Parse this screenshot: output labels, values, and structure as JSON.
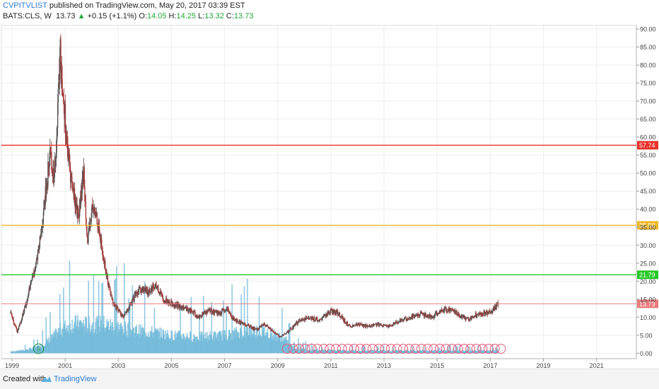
{
  "header": {
    "author": "CVPITVLIST",
    "published": "published on TradingView.com, May 20, 2017 03:39 EST",
    "symbol": "BATS:CLS, W",
    "last": "13.73",
    "change": "+0.15 (+1.1%)",
    "o_label": "O:",
    "o_value": "14.05",
    "h_label": "H:",
    "h_value": "14.25",
    "l_label": "L:",
    "l_value": "13.32",
    "c_label": "C:",
    "c_value": "13.73"
  },
  "footer": {
    "created_with": "Created with",
    "brand": "TradingView"
  },
  "colors": {
    "red_line": "#e8312a",
    "orange_line": "#f0b92a",
    "green_line": "#28c828",
    "current_line": "#e87a7a",
    "volume": "#6fb8d8",
    "candle_up": "#555555",
    "candle_down": "#a53b3b",
    "grid": "#eeeeee",
    "marker_red": "#e55a7a",
    "marker_green": "#1a8a3a"
  },
  "chart_data": {
    "type": "candlestick",
    "symbol": "BATS:CLS",
    "interval": "W",
    "xlim": [
      1998.6,
      2022.5
    ],
    "ylim": [
      -1.5,
      91
    ],
    "x_ticks": [
      "1999",
      "2001",
      "2003",
      "2005",
      "2007",
      "2009",
      "2011",
      "2013",
      "2015",
      "2017",
      "2019",
      "2021"
    ],
    "y_ticks": [
      "0.00",
      "5.00",
      "10.00",
      "15.00",
      "20.00",
      "25.00",
      "30.00",
      "35.00",
      "40.00",
      "45.00",
      "50.00",
      "55.00",
      "60.00",
      "65.00",
      "70.00",
      "75.00",
      "80.00",
      "85.00",
      "90.00"
    ],
    "horizontal_lines": [
      {
        "label": "57.74",
        "value": 57.74,
        "color": "#e8312a"
      },
      {
        "label": "35.50",
        "value": 35.5,
        "color": "#f0b92a"
      },
      {
        "label": "21.79",
        "value": 21.79,
        "color": "#28c828"
      },
      {
        "label": "13.73",
        "value": 13.73,
        "color": "#e87a7a"
      }
    ],
    "price_path": [
      [
        1998.95,
        11
      ],
      [
        1999.2,
        6
      ],
      [
        1999.5,
        13
      ],
      [
        1999.8,
        22
      ],
      [
        2000.0,
        28
      ],
      [
        2000.2,
        40
      ],
      [
        2000.45,
        57
      ],
      [
        2000.55,
        48
      ],
      [
        2000.7,
        62
      ],
      [
        2000.8,
        84
      ],
      [
        2000.95,
        70
      ],
      [
        2001.1,
        55
      ],
      [
        2001.3,
        45
      ],
      [
        2001.5,
        38
      ],
      [
        2001.7,
        50
      ],
      [
        2001.85,
        30
      ],
      [
        2002.0,
        40
      ],
      [
        2002.2,
        38
      ],
      [
        2002.4,
        28
      ],
      [
        2002.6,
        20
      ],
      [
        2002.8,
        14
      ],
      [
        2003.0,
        12
      ],
      [
        2003.2,
        10
      ],
      [
        2003.5,
        14
      ],
      [
        2003.8,
        18
      ],
      [
        2004.1,
        17
      ],
      [
        2004.4,
        19
      ],
      [
        2004.7,
        15
      ],
      [
        2005.0,
        14
      ],
      [
        2005.3,
        13
      ],
      [
        2005.7,
        12
      ],
      [
        2006.0,
        10
      ],
      [
        2006.4,
        12
      ],
      [
        2006.8,
        11
      ],
      [
        2007.1,
        12
      ],
      [
        2007.4,
        9
      ],
      [
        2007.8,
        8
      ],
      [
        2008.2,
        6.5
      ],
      [
        2008.5,
        8
      ],
      [
        2008.9,
        5.5
      ],
      [
        2009.1,
        4.5
      ],
      [
        2009.4,
        6
      ],
      [
        2009.8,
        9
      ],
      [
        2010.2,
        10
      ],
      [
        2010.6,
        9
      ],
      [
        2011.0,
        12
      ],
      [
        2011.3,
        11
      ],
      [
        2011.7,
        7.5
      ],
      [
        2012.0,
        8
      ],
      [
        2012.4,
        7.5
      ],
      [
        2012.8,
        8
      ],
      [
        2013.2,
        7.5
      ],
      [
        2013.6,
        9
      ],
      [
        2014.0,
        10
      ],
      [
        2014.4,
        11
      ],
      [
        2014.8,
        10
      ],
      [
        2015.2,
        12
      ],
      [
        2015.6,
        12
      ],
      [
        2015.9,
        10
      ],
      [
        2016.2,
        9.5
      ],
      [
        2016.5,
        11
      ],
      [
        2016.8,
        11
      ],
      [
        2017.1,
        12
      ],
      [
        2017.3,
        13.73
      ]
    ],
    "volume_envelope": [
      [
        1998.95,
        0.5
      ],
      [
        1999.5,
        1
      ],
      [
        2000.0,
        2
      ],
      [
        2000.4,
        4
      ],
      [
        2000.8,
        7
      ],
      [
        2001.2,
        9
      ],
      [
        2001.6,
        9
      ],
      [
        2002.0,
        8.5
      ],
      [
        2002.4,
        9
      ],
      [
        2003.0,
        8
      ],
      [
        2003.6,
        7
      ],
      [
        2004.2,
        6.5
      ],
      [
        2005.0,
        5.5
      ],
      [
        2006.0,
        5
      ],
      [
        2007.0,
        5.5
      ],
      [
        2007.6,
        6.5
      ],
      [
        2008.2,
        7
      ],
      [
        2008.8,
        6
      ],
      [
        2009.3,
        4
      ],
      [
        2009.6,
        1.5
      ],
      [
        2010.2,
        1
      ],
      [
        2011.0,
        1
      ],
      [
        2012.0,
        0.8
      ],
      [
        2013.0,
        0.8
      ],
      [
        2014.0,
        0.8
      ],
      [
        2015.0,
        0.8
      ],
      [
        2016.0,
        0.8
      ],
      [
        2017.3,
        0.8
      ]
    ],
    "markers": [
      {
        "type": "split",
        "label": "S",
        "x": 2000.0
      },
      {
        "type": "dividend",
        "label": "",
        "x_range": [
          2009.35,
          2017.4
        ],
        "count": 36
      }
    ],
    "grid": true
  }
}
